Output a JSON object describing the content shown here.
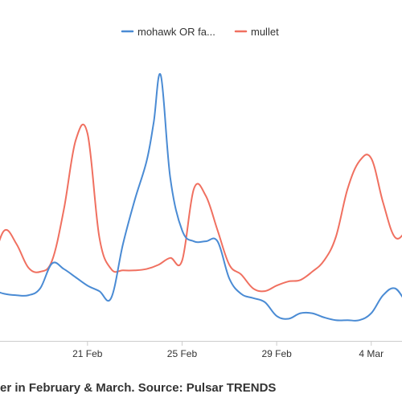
{
  "caption": "er in February & March. Source: Pulsar TRENDS",
  "chart_data": {
    "type": "line",
    "x_ticks": [
      "21 Feb",
      "25 Feb",
      "29 Feb",
      "4 Mar"
    ],
    "x_tick_positions": [
      3,
      7,
      11,
      15
    ],
    "grid": false,
    "legend_position": "top-center",
    "series": [
      {
        "name": "mohawk OR fa...",
        "color": "#4a8bd4",
        "x": [
          -2.4,
          -2.0,
          -1.5,
          -1.0,
          -0.5,
          0.0,
          0.5,
          1.0,
          1.5,
          2.0,
          2.5,
          3.0,
          3.5,
          4.0,
          4.5,
          5.0,
          5.5,
          5.8,
          6.1,
          6.5,
          7.0,
          7.5,
          8.0,
          8.5,
          9.0,
          9.5,
          10.0,
          10.5,
          11.0,
          11.5,
          12.0,
          12.5,
          13.0,
          13.5,
          14.0,
          14.5,
          15.0,
          15.5,
          16.0,
          16.5,
          17.0
        ],
        "y": [
          40,
          38,
          32,
          27,
          24,
          23,
          23,
          28,
          46,
          42,
          36,
          30,
          26,
          21,
          60,
          92,
          120,
          148,
          182,
          108,
          70,
          62,
          62,
          62,
          35,
          24,
          21,
          18,
          8,
          6,
          10,
          10,
          7,
          5,
          5,
          5,
          10,
          23,
          28,
          18,
          14
        ]
      },
      {
        "name": "mullet",
        "color": "#f07060",
        "x": [
          -2.4,
          -2.0,
          -1.5,
          -1.0,
          -0.5,
          0.0,
          0.5,
          1.0,
          1.5,
          2.0,
          2.5,
          3.0,
          3.5,
          4.0,
          4.5,
          5.0,
          5.5,
          6.0,
          6.5,
          7.0,
          7.5,
          8.0,
          8.5,
          9.0,
          9.5,
          10.0,
          10.5,
          11.0,
          11.5,
          12.0,
          12.5,
          13.0,
          13.5,
          14.0,
          14.5,
          15.0,
          15.5,
          16.0,
          16.5,
          17.0
        ],
        "y": [
          60,
          55,
          42,
          50,
          70,
          60,
          43,
          40,
          48,
          85,
          135,
          140,
          65,
          42,
          41,
          41,
          42,
          45,
          50,
          48,
          100,
          95,
          70,
          45,
          38,
          28,
          26,
          30,
          33,
          34,
          40,
          48,
          65,
          100,
          120,
          122,
          90,
          65,
          70,
          80
        ]
      }
    ],
    "x_view": [
      -0.7,
      16.3
    ],
    "y_view": [
      -10,
      190
    ]
  }
}
